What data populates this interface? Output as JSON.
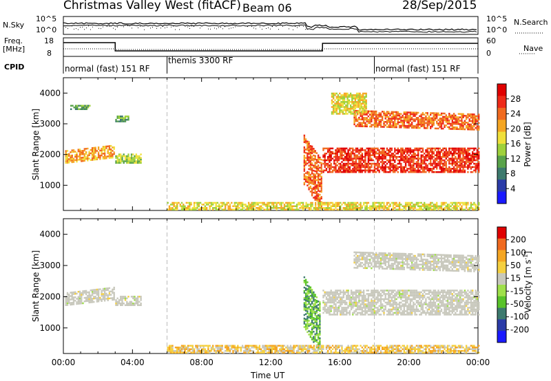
{
  "header": {
    "title": "Christmas Valley West (fitACF)",
    "beam": "Beam 06",
    "date": "28/Sep/2015"
  },
  "panels_top": {
    "nsky_label": "N.Sky",
    "nsky_ticks": [
      "10^5",
      "10^0"
    ],
    "nsearch_label": "N.Search",
    "nsearch_ticks": [
      "10^5",
      "10^0"
    ],
    "freq_label": "Freq.",
    "freq_unit": "[MHz]",
    "freq_ticks": [
      "18",
      "8"
    ],
    "nave_label": "Nave",
    "nave_ticks": [
      "60",
      "0"
    ],
    "cpid_label": "CPID",
    "cpid_segments": [
      "normal (fast) 151 RF",
      "themis 3300 RF",
      "normal (fast) 151 RF"
    ]
  },
  "colors": {
    "power_scale": [
      "#1a1aff",
      "#2b3ca8",
      "#3d7a6e",
      "#59a34a",
      "#9fd13b",
      "#f0e03a",
      "#f5a623",
      "#f06a1f",
      "#ee2a18",
      "#e00000"
    ],
    "velocity_scale": [
      "#1a1aff",
      "#2b3ca8",
      "#3d7a6e",
      "#59c32a",
      "#9fe04a",
      "#c8c8bc",
      "#f5d040",
      "#f5a623",
      "#f06a1f",
      "#e00000"
    ],
    "ground_grey": "#c8c8bc"
  },
  "chart_data": [
    {
      "type": "heatmap",
      "title": "Power",
      "ylabel": "Slant Range [km]",
      "xlabel": "Time UT",
      "yticks": [
        "1000",
        "2000",
        "3000",
        "4000"
      ],
      "ylim": [
        180,
        4500
      ],
      "xticks": [
        "00:00",
        "04:00",
        "08:00",
        "12:00",
        "16:00",
        "20:00",
        "00:00"
      ],
      "xlim_hours": [
        0,
        24
      ],
      "colorbar_label": "Power [dB]",
      "colorbar_ticks": [
        "4",
        "8",
        "12",
        "16",
        "20",
        "24",
        "28"
      ],
      "regions": [
        {
          "t0": 0.1,
          "t1": 2.9,
          "r0": 1700,
          "r1": 2100,
          "level": 6,
          "slope": 180
        },
        {
          "t0": 3.0,
          "t1": 4.5,
          "r0": 1700,
          "r1": 2000,
          "level": 4,
          "slope": 0
        },
        {
          "t0": 0.4,
          "t1": 1.5,
          "r0": 3450,
          "r1": 3600,
          "level": 3,
          "slope": 0
        },
        {
          "t0": 3.0,
          "t1": 3.8,
          "r0": 3050,
          "r1": 3250,
          "level": 3,
          "slope": 0
        },
        {
          "t0": 13.9,
          "t1": 14.9,
          "r0": 1000,
          "r1": 2600,
          "level": 7,
          "slope": -800
        },
        {
          "t0": 15.0,
          "t1": 24.0,
          "r0": 1400,
          "r1": 2200,
          "level": 8,
          "slope": 0
        },
        {
          "t0": 16.8,
          "t1": 24.0,
          "r0": 2900,
          "r1": 3400,
          "level": 7,
          "slope": -120
        },
        {
          "t0": 15.5,
          "t1": 17.5,
          "r0": 3300,
          "r1": 4000,
          "level": 5,
          "slope": 0
        },
        {
          "t0": 6.0,
          "t1": 24.0,
          "r0": 180,
          "r1": 420,
          "level": 5,
          "slope": 0
        }
      ]
    },
    {
      "type": "heatmap",
      "title": "Velocity",
      "ylabel": "Slant Range [km]",
      "xlabel": "Time UT",
      "yticks": [
        "1000",
        "2000",
        "3000",
        "4000"
      ],
      "ylim": [
        180,
        4500
      ],
      "xticks": [
        "00:00",
        "04:00",
        "08:00",
        "12:00",
        "16:00",
        "20:00",
        "00:00"
      ],
      "xlim_hours": [
        0,
        24
      ],
      "colorbar_label": "Velocity [m s",
      "colorbar_label_exp": "-1",
      "colorbar_ticks": [
        "200",
        "100",
        "50",
        "15",
        "-15",
        "-50",
        "-100",
        "-200"
      ],
      "regions": [
        {
          "t0": 0.1,
          "t1": 2.9,
          "r0": 1700,
          "r1": 2100,
          "level": 5,
          "slope": 180
        },
        {
          "t0": 3.0,
          "t1": 4.5,
          "r0": 1700,
          "r1": 2000,
          "level": 5,
          "slope": 0
        },
        {
          "t0": 13.9,
          "t1": 14.8,
          "r0": 1000,
          "r1": 2600,
          "level": 3,
          "slope": -800
        },
        {
          "t0": 15.0,
          "t1": 24.0,
          "r0": 1400,
          "r1": 2200,
          "level": 5,
          "slope": 0
        },
        {
          "t0": 16.8,
          "t1": 24.0,
          "r0": 2900,
          "r1": 3400,
          "level": 5,
          "slope": -120
        },
        {
          "t0": 6.0,
          "t1": 24.0,
          "r0": 180,
          "r1": 420,
          "level": 6,
          "slope": 0
        }
      ]
    }
  ]
}
